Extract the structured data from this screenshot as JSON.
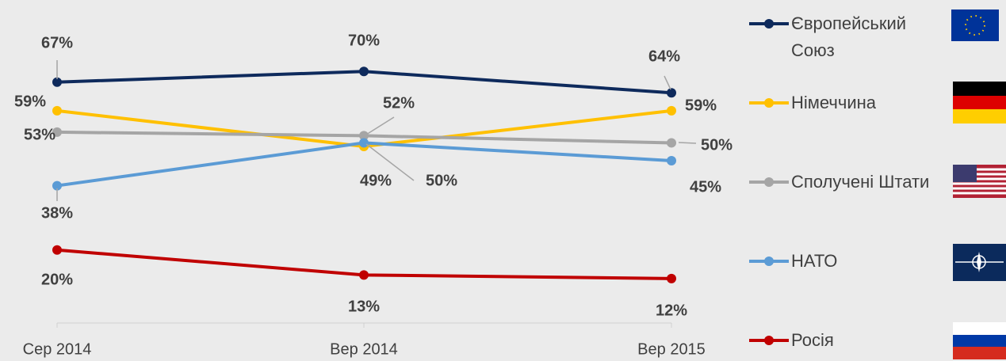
{
  "chart_data": {
    "type": "line",
    "categories": [
      "Сер 2014",
      "Вер 2014",
      "Вер 2015"
    ],
    "ylim": [
      0,
      90
    ],
    "series": [
      {
        "name": "Європейський Союз",
        "color": "#0e2a5c",
        "values": [
          67,
          70,
          64
        ],
        "value_labels": [
          "67%",
          "70%",
          "64%"
        ]
      },
      {
        "name": "Німеччина",
        "color": "#ffc000",
        "values": [
          59,
          49,
          59
        ],
        "value_labels": [
          "59%",
          "49%",
          "59%"
        ]
      },
      {
        "name": "Сполучені Штати",
        "color": "#a5a5a5",
        "values": [
          53,
          52,
          50
        ],
        "value_labels": [
          "53%",
          "52%",
          "50%"
        ]
      },
      {
        "name": "НАТО",
        "color": "#5b9bd5",
        "values": [
          38,
          50,
          45
        ],
        "value_labels": [
          "38%",
          "50%",
          "45%"
        ]
      },
      {
        "name": "Росія",
        "color": "#c00000",
        "values": [
          20,
          13,
          12
        ],
        "value_labels": [
          "20%",
          "13%",
          "12%"
        ]
      }
    ]
  }
}
